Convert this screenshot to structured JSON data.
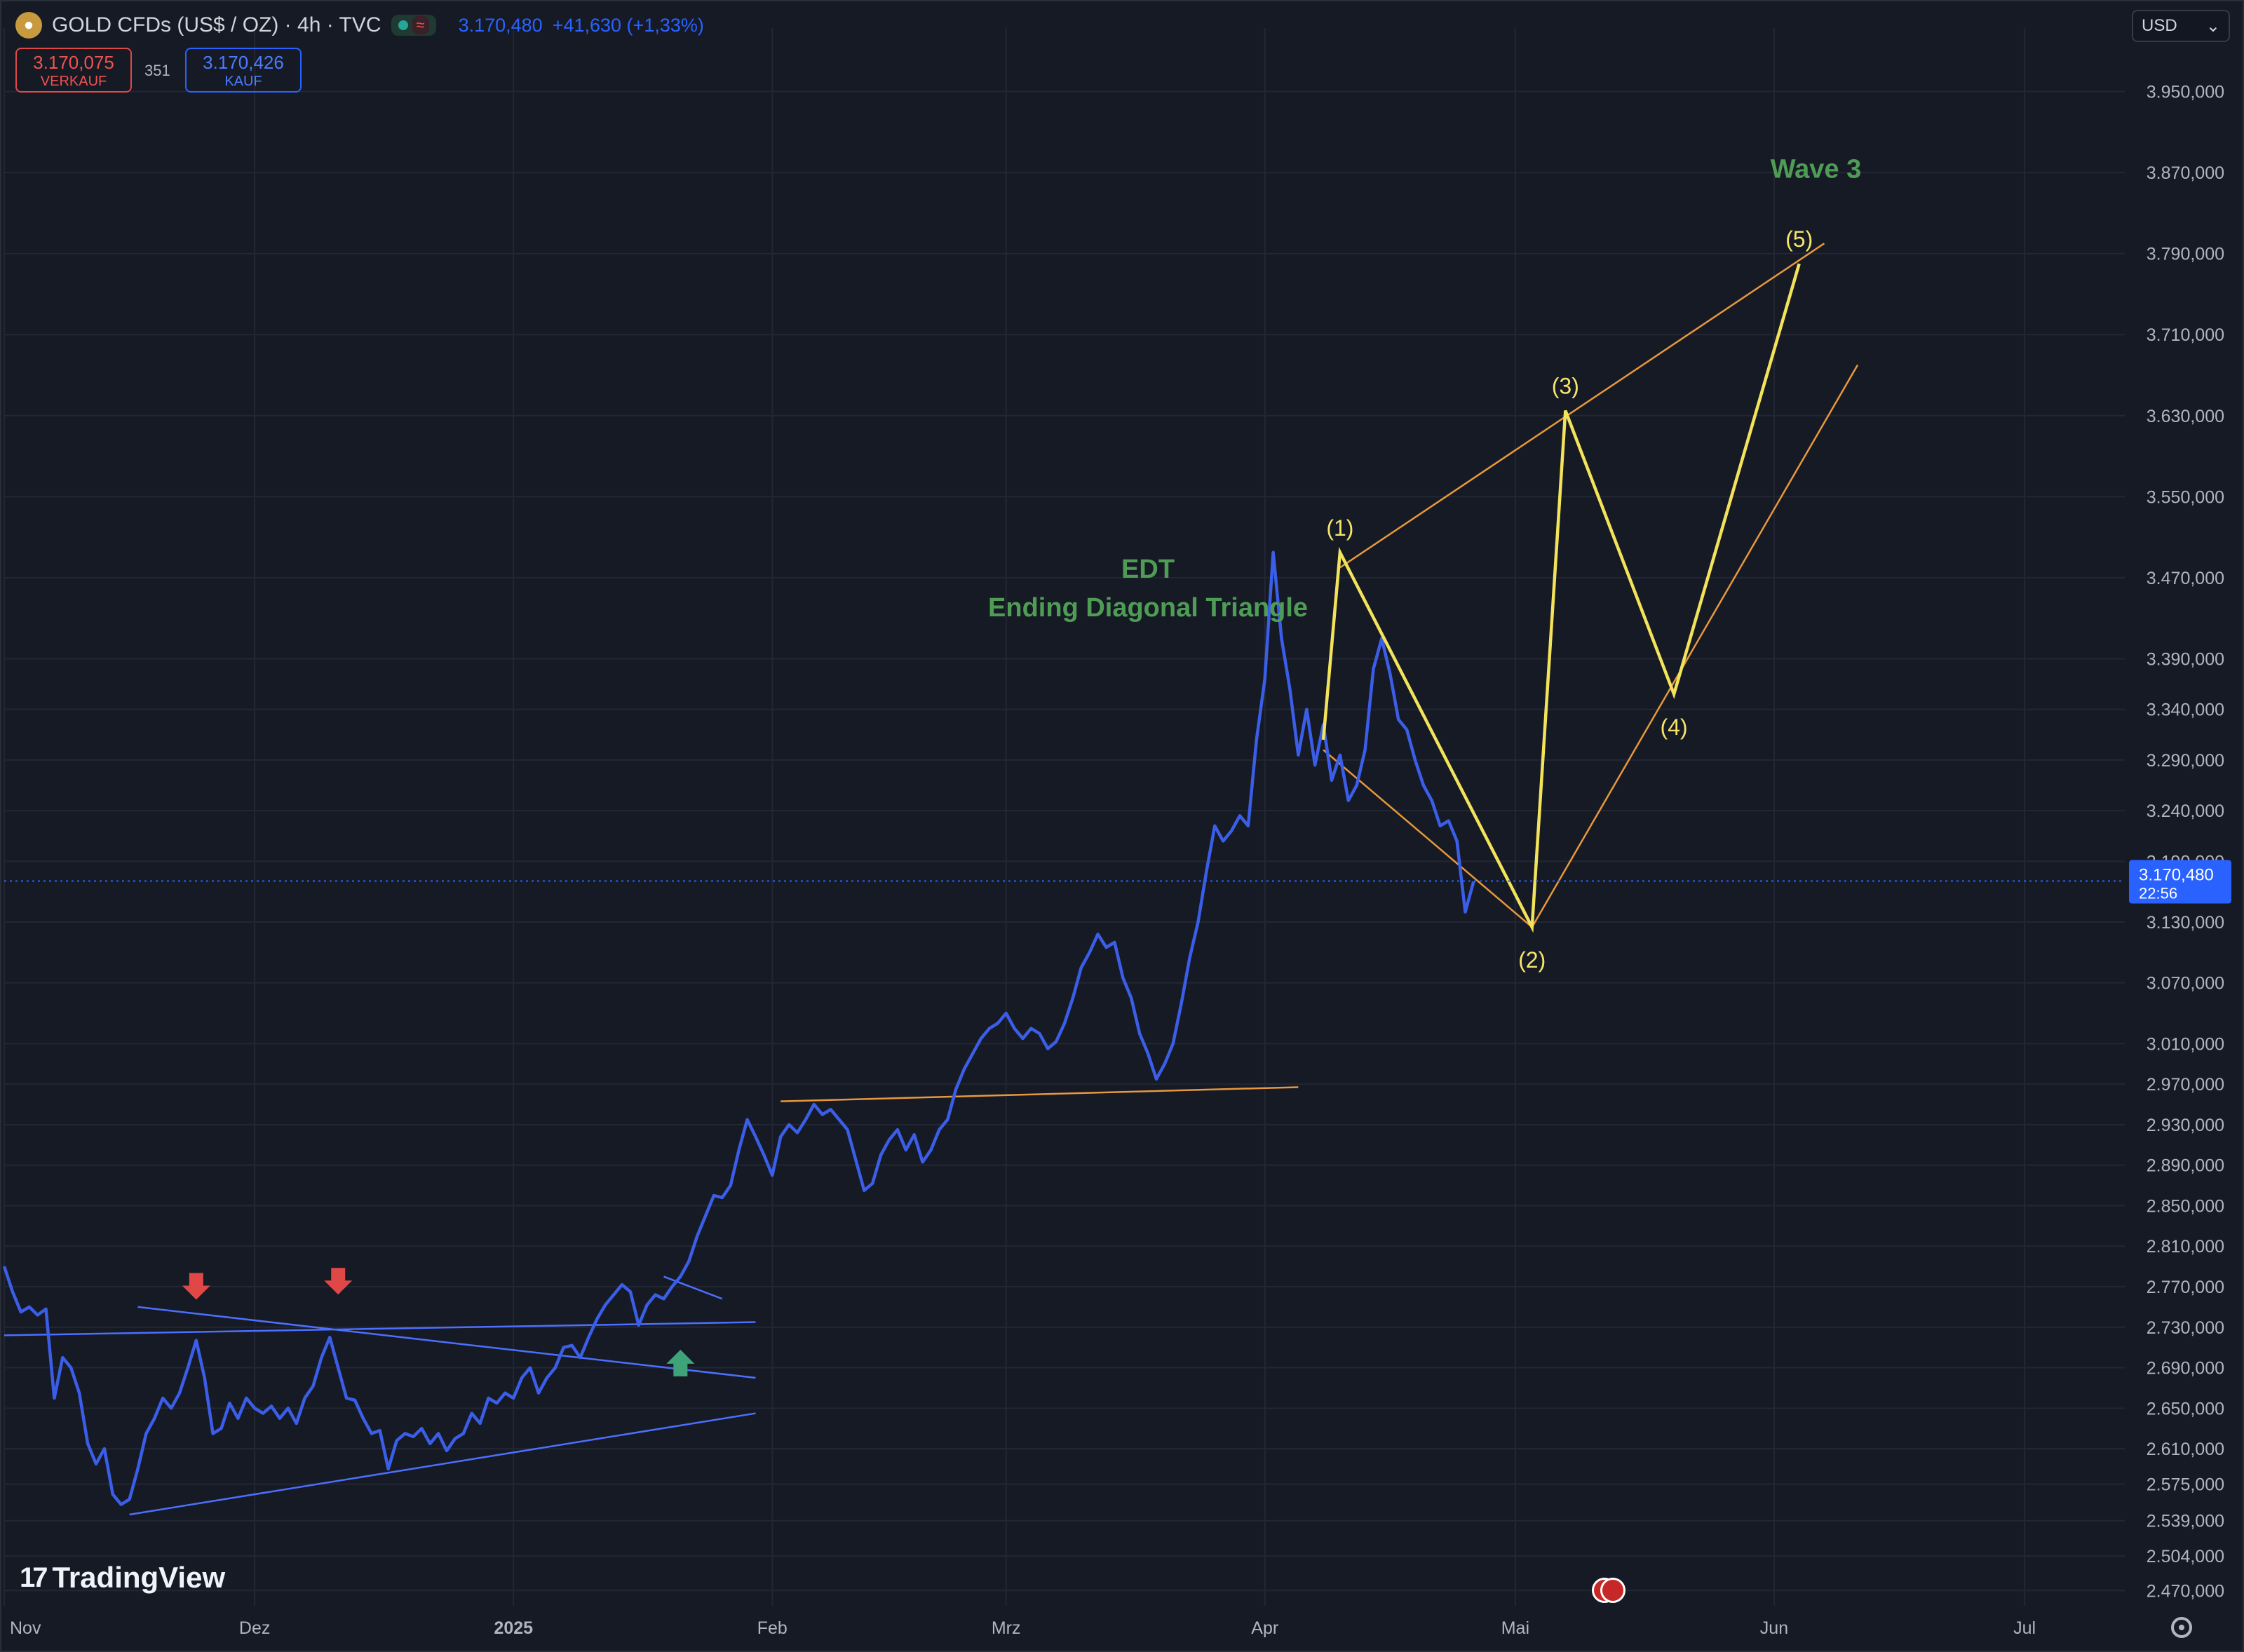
{
  "header": {
    "symbol_title": "GOLD CFDs (US$ / OZ) · 4h · TVC",
    "status_wave": "≈",
    "last_price": "3.170,480",
    "change": "+41,630 (+1,33%)"
  },
  "quotes": {
    "sell_price": "3.170,075",
    "sell_label": "VERKAUF",
    "spread": "351",
    "buy_price": "3.170,426",
    "buy_label": "KAUF"
  },
  "currency": {
    "selected": "USD",
    "chevron": "⌄"
  },
  "branding": {
    "logo_mark": "17",
    "name": "TradingView"
  },
  "icons": {
    "symbol": "gold-coin-icon",
    "settings": "gear-icon",
    "event": "us-flag-event-icon",
    "arrow_down": "red-down-arrow-icon",
    "arrow_up": "green-up-arrow-icon"
  },
  "colors": {
    "background": "#161a25",
    "price_line": "#3b5ee8",
    "elliott_lines": "#f2e35b",
    "channel_lines": "#e8983c",
    "annotation_green": "#4f9d55",
    "wave_label": "#f5e56b",
    "sell": "#ef5350",
    "buy": "#2962ff"
  },
  "chart_data": {
    "type": "line",
    "interval": "4h",
    "title": "GOLD CFDs (US$ / OZ) · 4h · TVC",
    "y_axis_ticks": [
      "3.950,000",
      "3.870,000",
      "3.790,000",
      "3.710,000",
      "3.630,000",
      "3.550,000",
      "3.470,000",
      "3.390,000",
      "3.340,000",
      "3.290,000",
      "3.240,000",
      "3.190,000",
      "3.130,000",
      "3.070,000",
      "3.010,000",
      "2.970,000",
      "2.930,000",
      "2.890,000",
      "2.850,000",
      "2.810,000",
      "2.770,000",
      "2.730,000",
      "2.690,000",
      "2.650,000",
      "2.610,000",
      "2.575,000",
      "2.539,000",
      "2.504,000",
      "2.470,000"
    ],
    "ylim": [
      2455,
      3985
    ],
    "x_axis_ticks": [
      "Nov",
      "Dez",
      "2025",
      "Feb",
      "Mrz",
      "Apr",
      "Mai",
      "Jun",
      "Jul"
    ],
    "x_tick_days": [
      0,
      30,
      61,
      92,
      120,
      151,
      181,
      212,
      242
    ],
    "xlim_days": [
      0,
      254
    ],
    "current_price": {
      "value": 3170.48,
      "label": "3.170,480",
      "countdown": "22:56"
    },
    "series": [
      {
        "points": [
          [
            0,
            2790
          ],
          [
            1,
            2765
          ],
          [
            2,
            2745
          ],
          [
            3,
            2750
          ],
          [
            4,
            2742
          ],
          [
            5,
            2748
          ],
          [
            6,
            2660
          ],
          [
            7,
            2700
          ],
          [
            8,
            2690
          ],
          [
            9,
            2665
          ],
          [
            10,
            2615
          ],
          [
            11,
            2595
          ],
          [
            12,
            2610
          ],
          [
            13,
            2565
          ],
          [
            14,
            2555
          ],
          [
            15,
            2560
          ],
          [
            16,
            2590
          ],
          [
            17,
            2625
          ],
          [
            18,
            2640
          ],
          [
            19,
            2660
          ],
          [
            20,
            2650
          ],
          [
            21,
            2665
          ],
          [
            22,
            2690
          ],
          [
            23,
            2717
          ],
          [
            24,
            2680
          ],
          [
            25,
            2625
          ],
          [
            26,
            2630
          ],
          [
            27,
            2655
          ],
          [
            28,
            2640
          ],
          [
            29,
            2660
          ],
          [
            30,
            2650
          ],
          [
            31,
            2645
          ],
          [
            32,
            2652
          ],
          [
            33,
            2640
          ],
          [
            34,
            2650
          ],
          [
            35,
            2635
          ],
          [
            36,
            2660
          ],
          [
            37,
            2672
          ],
          [
            38,
            2700
          ],
          [
            39,
            2720
          ],
          [
            40,
            2690
          ],
          [
            41,
            2660
          ],
          [
            42,
            2658
          ],
          [
            43,
            2640
          ],
          [
            44,
            2625
          ],
          [
            45,
            2628
          ],
          [
            46,
            2590
          ],
          [
            47,
            2618
          ],
          [
            48,
            2625
          ],
          [
            49,
            2622
          ],
          [
            50,
            2630
          ],
          [
            51,
            2615
          ],
          [
            52,
            2625
          ],
          [
            53,
            2608
          ],
          [
            54,
            2620
          ],
          [
            55,
            2625
          ],
          [
            56,
            2645
          ],
          [
            57,
            2635
          ],
          [
            58,
            2660
          ],
          [
            59,
            2655
          ],
          [
            60,
            2665
          ],
          [
            61,
            2660
          ],
          [
            62,
            2680
          ],
          [
            63,
            2690
          ],
          [
            64,
            2665
          ],
          [
            65,
            2680
          ],
          [
            66,
            2690
          ],
          [
            67,
            2710
          ],
          [
            68,
            2712
          ],
          [
            69,
            2700
          ],
          [
            70,
            2720
          ],
          [
            71,
            2738
          ],
          [
            72,
            2752
          ],
          [
            73,
            2762
          ],
          [
            74,
            2772
          ],
          [
            75,
            2765
          ],
          [
            76,
            2732
          ],
          [
            77,
            2752
          ],
          [
            78,
            2762
          ],
          [
            79,
            2758
          ],
          [
            80,
            2770
          ],
          [
            81,
            2780
          ],
          [
            82,
            2795
          ],
          [
            83,
            2820
          ],
          [
            84,
            2840
          ],
          [
            85,
            2860
          ],
          [
            86,
            2858
          ],
          [
            87,
            2870
          ],
          [
            88,
            2905
          ],
          [
            89,
            2935
          ],
          [
            90,
            2918
          ],
          [
            91,
            2900
          ],
          [
            92,
            2880
          ],
          [
            93,
            2918
          ],
          [
            94,
            2930
          ],
          [
            95,
            2922
          ],
          [
            96,
            2935
          ],
          [
            97,
            2950
          ],
          [
            98,
            2940
          ],
          [
            99,
            2945
          ],
          [
            100,
            2935
          ],
          [
            101,
            2925
          ],
          [
            102,
            2895
          ],
          [
            103,
            2865
          ],
          [
            104,
            2872
          ],
          [
            105,
            2900
          ],
          [
            106,
            2915
          ],
          [
            107,
            2925
          ],
          [
            108,
            2905
          ],
          [
            109,
            2920
          ],
          [
            110,
            2893
          ],
          [
            111,
            2905
          ],
          [
            112,
            2925
          ],
          [
            113,
            2935
          ],
          [
            114,
            2965
          ],
          [
            115,
            2985
          ],
          [
            116,
            3000
          ],
          [
            117,
            3015
          ],
          [
            118,
            3025
          ],
          [
            119,
            3030
          ],
          [
            120,
            3040
          ],
          [
            121,
            3025
          ],
          [
            122,
            3015
          ],
          [
            123,
            3025
          ],
          [
            124,
            3020
          ],
          [
            125,
            3005
          ],
          [
            126,
            3012
          ],
          [
            127,
            3030
          ],
          [
            128,
            3055
          ],
          [
            129,
            3085
          ],
          [
            130,
            3100
          ],
          [
            131,
            3118
          ],
          [
            132,
            3105
          ],
          [
            133,
            3110
          ],
          [
            134,
            3075
          ],
          [
            135,
            3055
          ],
          [
            136,
            3020
          ],
          [
            137,
            3000
          ],
          [
            138,
            2975
          ],
          [
            139,
            2990
          ],
          [
            140,
            3010
          ],
          [
            141,
            3050
          ],
          [
            142,
            3095
          ],
          [
            143,
            3130
          ],
          [
            144,
            3180
          ],
          [
            145,
            3225
          ],
          [
            146,
            3210
          ],
          [
            147,
            3220
          ],
          [
            148,
            3235
          ],
          [
            149,
            3225
          ],
          [
            150,
            3310
          ],
          [
            151,
            3370
          ],
          [
            152,
            3495
          ],
          [
            153,
            3410
          ],
          [
            154,
            3360
          ],
          [
            155,
            3295
          ],
          [
            156,
            3340
          ],
          [
            157,
            3285
          ],
          [
            158,
            3325
          ],
          [
            159,
            3270
          ],
          [
            160,
            3295
          ],
          [
            161,
            3250
          ],
          [
            162,
            3265
          ],
          [
            163,
            3300
          ],
          [
            164,
            3380
          ],
          [
            165,
            3410
          ],
          [
            166,
            3375
          ],
          [
            167,
            3330
          ],
          [
            168,
            3320
          ],
          [
            169,
            3290
          ],
          [
            170,
            3265
          ],
          [
            171,
            3250
          ],
          [
            172,
            3225
          ],
          [
            173,
            3230
          ],
          [
            174,
            3210
          ],
          [
            175,
            3140
          ],
          [
            176,
            3170
          ]
        ]
      }
    ],
    "trendlines": [
      {
        "from": [
          0,
          2722
        ],
        "to": [
          90,
          2735
        ],
        "color": "#4c6fff"
      },
      {
        "from": [
          16,
          2750
        ],
        "to": [
          90,
          2680
        ],
        "color": "#4c6fff"
      },
      {
        "from": [
          15,
          2545
        ],
        "to": [
          90,
          2645
        ],
        "color": "#4c6fff"
      },
      {
        "from": [
          79,
          2780
        ],
        "to": [
          86,
          2758
        ],
        "color": "#4c6fff"
      },
      {
        "from": [
          93,
          2953
        ],
        "to": [
          155,
          2967
        ],
        "color": "#e8983c"
      },
      {
        "from": [
          158,
          3300
        ],
        "to": [
          183,
          3125
        ],
        "color": "#e8983c"
      },
      {
        "from": [
          160,
          3480
        ],
        "to": [
          218,
          3800
        ],
        "color": "#e8983c"
      },
      {
        "from": [
          183,
          3125
        ],
        "to": [
          222,
          3680
        ],
        "color": "#e8983c"
      }
    ],
    "elliott_wave": {
      "points": [
        [
          158,
          3310
        ],
        [
          160,
          3495
        ],
        [
          183,
          3125
        ],
        [
          187,
          3635
        ],
        [
          200,
          3355
        ],
        [
          215,
          3780
        ]
      ],
      "labels": [
        "(1)",
        "(2)",
        "(3)",
        "(4)",
        "(5)"
      ]
    },
    "annotations": [
      {
        "text": "EDT",
        "day": 137,
        "price": 3470
      },
      {
        "text": "Ending Diagonal Triangle",
        "day": 137,
        "price": 3432
      },
      {
        "text": "Wave 3",
        "day": 217,
        "price": 3865
      }
    ],
    "arrows": [
      {
        "type": "down",
        "day": 23,
        "price": 2760,
        "color": "#e04848"
      },
      {
        "type": "down",
        "day": 40,
        "price": 2765,
        "color": "#e04848"
      },
      {
        "type": "up",
        "day": 81,
        "price": 2705,
        "color": "#3fa37a"
      }
    ]
  }
}
